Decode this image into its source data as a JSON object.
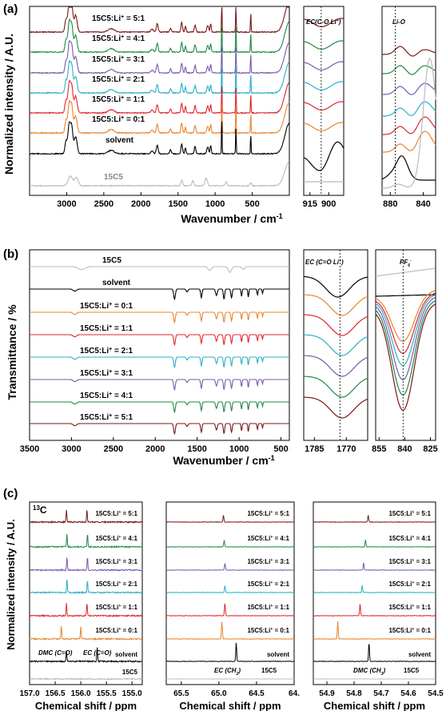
{
  "colors": {
    "solvent": "#000000",
    "15C5": "#bbbbbb",
    "0:1": "#e8842e",
    "1:1": "#e0262c",
    "2:1": "#2ab0c4",
    "3:1": "#7a5aae",
    "4:1": "#1f8a46",
    "5:1": "#7a1818"
  },
  "chart_data": [
    {
      "panel": "(a)",
      "type": "line",
      "ylabel": "Normalized intensity / A.U.",
      "xlabel": "Wavenumber / cm",
      "xlabel_sup": "-1",
      "subplots": [
        {
          "xlim": [
            3500,
            0
          ],
          "ticks": [
            3000,
            2500,
            2000,
            1500,
            1000,
            500
          ],
          "tick_labels": [
            "3000",
            "2500",
            "2000",
            "1500",
            "1000",
            "500"
          ],
          "series": [
            {
              "key": "5:1",
              "label": "15C5:Li",
              "sup": "+",
              "tail": " = 5:1"
            },
            {
              "key": "4:1",
              "label": "15C5:Li",
              "sup": "+",
              "tail": " = 4:1"
            },
            {
              "key": "3:1",
              "label": "15C5:Li",
              "sup": "+",
              "tail": " = 3:1"
            },
            {
              "key": "2:1",
              "label": "15C5:Li",
              "sup": "+",
              "tail": " = 2:1"
            },
            {
              "key": "1:1",
              "label": "15C5:Li",
              "sup": "+",
              "tail": " = 1:1"
            },
            {
              "key": "0:1",
              "label": "15C5:Li",
              "sup": "+",
              "tail": " = 0:1"
            },
            {
              "key": "solvent",
              "label": "solvent",
              "sup": "",
              "tail": ""
            },
            {
              "key": "15C5",
              "label": "15C5",
              "sup": "",
              "tail": ""
            }
          ]
        },
        {
          "xlim": [
            920,
            888
          ],
          "ticks": [
            915,
            900
          ],
          "tick_labels": [
            "915",
            "900"
          ],
          "annotation": "EC(C-O Li",
          "annotation_sup": "+",
          "annotation_tail": ")",
          "marker_x": 906
        },
        {
          "xlim": [
            890,
            825
          ],
          "ticks": [
            880,
            840
          ],
          "tick_labels": [
            "880",
            "840"
          ],
          "annotation": "Li-O",
          "marker_x": 874
        }
      ]
    },
    {
      "panel": "(b)",
      "type": "line",
      "ylabel": "Transmittance / %",
      "xlabel": "Wavenumber / cm",
      "xlabel_sup": "-1",
      "subplots": [
        {
          "xlim": [
            3500,
            400
          ],
          "ticks": [
            3500,
            3000,
            2500,
            2000,
            1500,
            1000,
            500
          ],
          "tick_labels": [
            "3500",
            "3000",
            "2500",
            "2000",
            "1500",
            "1000",
            "500"
          ],
          "series": [
            {
              "key": "15C5",
              "label": "15C5",
              "sup": "",
              "tail": ""
            },
            {
              "key": "solvent",
              "label": "solvent",
              "sup": "",
              "tail": ""
            },
            {
              "key": "0:1",
              "label": "15C5:Li",
              "sup": "+",
              "tail": " = 0:1"
            },
            {
              "key": "1:1",
              "label": "15C5:Li",
              "sup": "+",
              "tail": " = 1:1"
            },
            {
              "key": "2:1",
              "label": "15C5:Li",
              "sup": "+",
              "tail": " = 2:1"
            },
            {
              "key": "3:1",
              "label": "15C5:Li",
              "sup": "+",
              "tail": " = 3:1"
            },
            {
              "key": "4:1",
              "label": "15C5:Li",
              "sup": "+",
              "tail": " = 4:1"
            },
            {
              "key": "5:1",
              "label": "15C5:Li",
              "sup": "+",
              "tail": " = 5:1"
            }
          ]
        },
        {
          "xlim": [
            1790,
            1760
          ],
          "ticks": [
            1785,
            1770
          ],
          "tick_labels": [
            "1785",
            "1770"
          ],
          "annotation": "EC (C=O Li",
          "annotation_sup": "+",
          "annotation_tail": ")",
          "marker_x": 1773
        },
        {
          "xlim": [
            857,
            822
          ],
          "ticks": [
            855,
            840,
            825
          ],
          "tick_labels": [
            "855",
            "840",
            "825"
          ],
          "annotation": "PF",
          "annotation_sub": "6",
          "annotation_sup": "-",
          "marker_x": 841
        }
      ]
    },
    {
      "panel": "(c)",
      "type": "line",
      "ylabel": "Normalized intensity / A.U.",
      "nucleus_sup": "13",
      "nucleus": "C",
      "subplots": [
        {
          "xlim": [
            157.0,
            154.8
          ],
          "ticks": [
            157.0,
            156.5,
            156.0,
            155.5,
            155.0
          ],
          "tick_labels": [
            "157.0",
            "156.5",
            "156.0",
            "155.5",
            "155.0"
          ],
          "xlabel": "Chemical shift / ppm",
          "annotations": [
            "DMC (C=O)",
            "EC (C=O)"
          ],
          "series": [
            {
              "key": "5:1",
              "label": "15C5:Li",
              "sup": "+",
              "tail": " = 5:1"
            },
            {
              "key": "4:1",
              "label": "15C5:Li",
              "sup": "+",
              "tail": " = 4:1"
            },
            {
              "key": "3:1",
              "label": "15C5:Li",
              "sup": "+",
              "tail": " = 3:1"
            },
            {
              "key": "2:1",
              "label": "15C5:Li",
              "sup": "+",
              "tail": " = 2:1"
            },
            {
              "key": "1:1",
              "label": "15C5:Li",
              "sup": "+",
              "tail": " = 1:1"
            },
            {
              "key": "0:1",
              "label": "15C5:Li",
              "sup": "+",
              "tail": " = 0:1"
            },
            {
              "key": "solvent",
              "label": "solvent",
              "sup": "",
              "tail": ""
            },
            {
              "key": "15C5",
              "label": "15C5",
              "sup": "",
              "tail": ""
            }
          ],
          "peaks": [
            {
              "key": "5:1",
              "x": [
                156.28,
                155.88
              ]
            },
            {
              "key": "4:1",
              "x": [
                156.27,
                155.87
              ]
            },
            {
              "key": "3:1",
              "x": [
                156.27,
                155.87
              ]
            },
            {
              "key": "2:1",
              "x": [
                156.27,
                155.87
              ]
            },
            {
              "key": "1:1",
              "x": [
                156.28,
                155.88
              ]
            },
            {
              "key": "0:1",
              "x": [
                156.38,
                156.0
              ]
            },
            {
              "key": "solvent",
              "x": [
                156.28,
                155.68
              ]
            }
          ]
        },
        {
          "xlim": [
            65.7,
            64.0
          ],
          "ticks": [
            65.5,
            65.0,
            64.5,
            64.0
          ],
          "tick_labels": [
            "65.5",
            "65.0",
            "64.5",
            "64."
          ],
          "xlabel": "Chemical shift / ppm",
          "annotation": "EC (CH",
          "annotation_sub": "2",
          "annotation_tail": ")",
          "annotation_right": "15C5",
          "series": [
            {
              "key": "5:1",
              "label": "15C5:Li",
              "sup": "+",
              "tail": " = 5:1"
            },
            {
              "key": "4:1",
              "label": "15C5:Li",
              "sup": "+",
              "tail": " = 4:1"
            },
            {
              "key": "3:1",
              "label": "15C5:Li",
              "sup": "+",
              "tail": " = 3:1"
            },
            {
              "key": "2:1",
              "label": "15C5:Li",
              "sup": "+",
              "tail": " = 2:1"
            },
            {
              "key": "1:1",
              "label": "15C5:Li",
              "sup": "+",
              "tail": " = 1:1"
            },
            {
              "key": "0:1",
              "label": "15C5:Li",
              "sup": "+",
              "tail": " = 0:1"
            },
            {
              "key": "solvent",
              "label": "solvent",
              "sup": "",
              "tail": ""
            }
          ],
          "peaks": [
            {
              "key": "5:1",
              "x": 64.94
            },
            {
              "key": "4:1",
              "x": 64.93
            },
            {
              "key": "3:1",
              "x": 64.92
            },
            {
              "key": "2:1",
              "x": 64.92
            },
            {
              "key": "1:1",
              "x": 64.92
            },
            {
              "key": "0:1",
              "x": 64.96
            },
            {
              "key": "solvent",
              "x": 64.77
            }
          ]
        },
        {
          "xlim": [
            54.95,
            54.5
          ],
          "ticks": [
            54.9,
            54.8,
            54.7,
            54.6,
            54.5
          ],
          "tick_labels": [
            "54.9",
            "54.8",
            "54.7",
            "54.6",
            "54.5"
          ],
          "xlabel": "Chemical shift / ppm",
          "annotation": "DMC (CH",
          "annotation_sub": "3",
          "annotation_tail": ")",
          "annotation_right": "15C5",
          "series": [
            {
              "key": "5:1",
              "label": "15C5:Li",
              "sup": "+",
              "tail": " = 5:1"
            },
            {
              "key": "4:1",
              "label": "15C5:Li",
              "sup": "+",
              "tail": " = 4:1"
            },
            {
              "key": "3:1",
              "label": "15C5:Li",
              "sup": "+",
              "tail": " = 3:1"
            },
            {
              "key": "2:1",
              "label": "15C5:Li",
              "sup": "+",
              "tail": " = 2:1"
            },
            {
              "key": "1:1",
              "label": "15C5:Li",
              "sup": "+",
              "tail": " = 1:1"
            },
            {
              "key": "0:1",
              "label": "15C5:Li",
              "sup": "+",
              "tail": " = 0:1"
            },
            {
              "key": "solvent",
              "label": "solvent",
              "sup": "",
              "tail": ""
            }
          ],
          "peaks": [
            {
              "key": "5:1",
              "x": 54.748
            },
            {
              "key": "4:1",
              "x": 54.758
            },
            {
              "key": "3:1",
              "x": 54.765
            },
            {
              "key": "2:1",
              "x": 54.77
            },
            {
              "key": "1:1",
              "x": 54.778
            },
            {
              "key": "0:1",
              "x": 54.86
            },
            {
              "key": "solvent",
              "x": 54.745
            }
          ]
        }
      ]
    }
  ]
}
